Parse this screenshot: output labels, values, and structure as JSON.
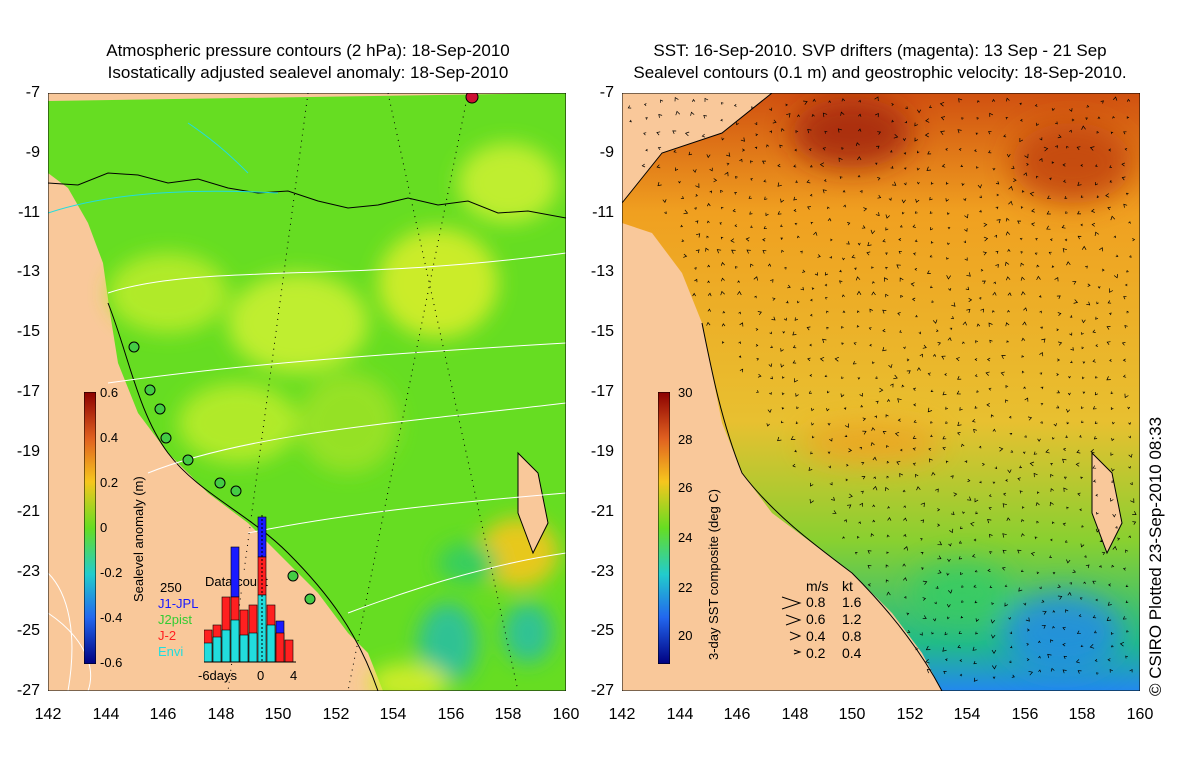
{
  "left_panel": {
    "title_line1": "Atmospheric pressure contours (2 hPa): 18-Sep-2010",
    "title_line2": "Isostatically adjusted sealevel anomaly: 18-Sep-2010",
    "colorbar_label": "Sealevel anomaly (m)",
    "colorbar_ticks": [
      "0.6",
      "0.4",
      "0.2",
      "0",
      "-0.2",
      "-0.4",
      "-0.6"
    ],
    "data_count": {
      "title": "Data count",
      "ymax_label": "250",
      "x_labels": [
        "-6days",
        "0",
        "4"
      ],
      "legend": [
        {
          "name": "J1-JPL",
          "color": "#1a1aff"
        },
        {
          "name": "J2pist",
          "color": "#33cc33"
        },
        {
          "name": "J-2",
          "color": "#ff2020"
        },
        {
          "name": "Envi",
          "color": "#22dddd"
        }
      ]
    }
  },
  "right_panel": {
    "title_line1": "SST: 16-Sep-2010. SVP drifters (magenta): 13 Sep - 21 Sep",
    "title_line2": "Sealevel contours (0.1 m) and geostrophic velocity: 18-Sep-2010.",
    "colorbar_label": "3-day SST composite (deg C)",
    "colorbar_ticks": [
      "30",
      "28",
      "26",
      "24",
      "22",
      "20"
    ],
    "velocity_legend": {
      "header_ms": "m/s",
      "header_kt": "kt",
      "rows": [
        {
          "ms": "0.8",
          "kt": "1.6"
        },
        {
          "ms": "0.6",
          "kt": "1.2"
        },
        {
          "ms": "0.4",
          "kt": "0.8"
        },
        {
          "ms": "0.2",
          "kt": "0.4"
        }
      ]
    }
  },
  "axes": {
    "y_ticks": [
      "-7",
      "-9",
      "-11",
      "-13",
      "-15",
      "-17",
      "-19",
      "-21",
      "-23",
      "-25",
      "-27"
    ],
    "x_ticks": [
      "142",
      "144",
      "146",
      "148",
      "150",
      "152",
      "154",
      "156",
      "158",
      "160"
    ]
  },
  "credit": "© CSIRO Plotted 23-Sep-2010 08:33",
  "colors": {
    "land": "#f9c89a",
    "sla_green": "#66dd22",
    "sla_lime": "#b9ec2a",
    "sst_orange": "#f0a020"
  }
}
